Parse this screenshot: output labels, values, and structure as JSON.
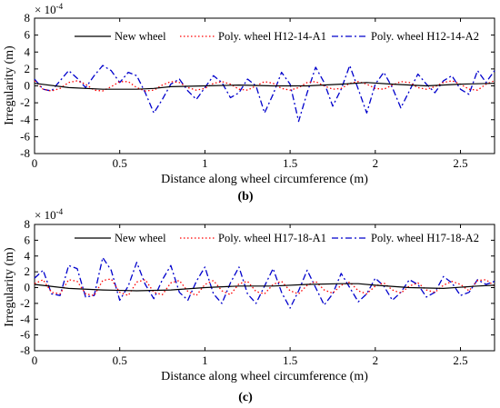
{
  "chart_data": [
    {
      "type": "line",
      "caption": "(b)",
      "multiplier_base": "× 10",
      "multiplier_exp": "-4",
      "xlabel": "Distance along wheel circumference (m)",
      "ylabel": "Irregularity (m)",
      "xlim": [
        0,
        2.7
      ],
      "ylim": [
        -8,
        8
      ],
      "xticks": [
        0,
        0.5,
        1,
        1.5,
        2,
        2.5
      ],
      "xtick_labels": [
        "0",
        "0.5",
        "1",
        "1.5",
        "2",
        "2.5"
      ],
      "yticks": [
        -8,
        -6,
        -4,
        -2,
        0,
        2,
        4,
        6,
        8
      ],
      "ytick_labels": [
        "-8",
        "-6",
        "-4",
        "-2",
        "0",
        "2",
        "4",
        "6",
        "8"
      ],
      "legend_position": "top",
      "series": [
        {
          "name": "New wheel",
          "color": "#000000",
          "style": "solid",
          "x": [
            0,
            0.2,
            0.4,
            0.6,
            0.7,
            0.8,
            1.0,
            1.2,
            1.4,
            1.6,
            1.8,
            1.95,
            2.1,
            2.3,
            2.5,
            2.7
          ],
          "y": [
            0.3,
            -0.2,
            -0.4,
            -0.4,
            -0.3,
            -0.1,
            0.0,
            0.1,
            0.0,
            0.0,
            0.2,
            0.4,
            0.2,
            0.0,
            0.2,
            0.3
          ]
        },
        {
          "name": "Poly. wheel H12-14-A1",
          "color": "#ff0000",
          "style": "dotted",
          "x": [
            0,
            0.05,
            0.1,
            0.15,
            0.2,
            0.25,
            0.3,
            0.35,
            0.4,
            0.45,
            0.5,
            0.55,
            0.6,
            0.65,
            0.7,
            0.75,
            0.8,
            0.85,
            0.9,
            0.95,
            1.0,
            1.05,
            1.1,
            1.15,
            1.2,
            1.25,
            1.3,
            1.35,
            1.4,
            1.45,
            1.5,
            1.55,
            1.6,
            1.65,
            1.7,
            1.75,
            1.8,
            1.85,
            1.9,
            1.95,
            2.0,
            2.05,
            2.1,
            2.15,
            2.2,
            2.25,
            2.3,
            2.35,
            2.4,
            2.45,
            2.5,
            2.55,
            2.6,
            2.65,
            2.7
          ],
          "y": [
            0.6,
            -0.4,
            -0.6,
            -0.3,
            0.4,
            0.6,
            0.2,
            -0.5,
            -0.6,
            -0.1,
            0.5,
            0.5,
            -0.2,
            -0.6,
            -0.5,
            0.1,
            0.5,
            0.4,
            -0.2,
            -0.5,
            -0.3,
            0.3,
            0.5,
            0.2,
            -0.4,
            -0.5,
            0.0,
            0.5,
            0.3,
            -0.3,
            -0.5,
            -0.2,
            0.4,
            0.5,
            0.0,
            -0.4,
            -0.3,
            0.3,
            0.5,
            0.2,
            -0.3,
            -0.4,
            0.1,
            0.5,
            0.4,
            -0.2,
            -0.4,
            -0.1,
            0.4,
            0.6,
            0.2,
            -0.4,
            -0.5,
            0.2,
            0.6
          ]
        },
        {
          "name": "Poly. wheel H12-14-A2",
          "color": "#0000cc",
          "style": "dashdot",
          "x": [
            0,
            0.05,
            0.1,
            0.15,
            0.2,
            0.25,
            0.3,
            0.35,
            0.4,
            0.45,
            0.5,
            0.55,
            0.6,
            0.65,
            0.7,
            0.75,
            0.8,
            0.85,
            0.9,
            0.95,
            1.0,
            1.05,
            1.1,
            1.15,
            1.2,
            1.25,
            1.3,
            1.35,
            1.4,
            1.45,
            1.5,
            1.55,
            1.6,
            1.65,
            1.7,
            1.75,
            1.8,
            1.85,
            1.9,
            1.95,
            2.0,
            2.05,
            2.1,
            2.15,
            2.2,
            2.25,
            2.3,
            2.35,
            2.4,
            2.45,
            2.5,
            2.55,
            2.6,
            2.65,
            2.7
          ],
          "y": [
            0.8,
            -0.4,
            -0.6,
            0.6,
            1.8,
            0.9,
            -0.2,
            1.2,
            2.4,
            1.8,
            0.4,
            1.6,
            1.2,
            -0.8,
            -3.2,
            -1.6,
            0.2,
            0.8,
            -0.6,
            -1.6,
            -0.2,
            1.2,
            0.4,
            -1.4,
            -0.8,
            0.8,
            0.0,
            -3.2,
            -1.0,
            1.6,
            0.2,
            -4.2,
            -0.8,
            2.2,
            0.4,
            -2.4,
            -0.4,
            2.4,
            -0.4,
            -3.2,
            0.2,
            1.6,
            -0.2,
            -2.6,
            -0.6,
            1.4,
            0.2,
            -0.8,
            0.6,
            1.2,
            -0.4,
            -1.0,
            1.8,
            0.4,
            1.8
          ]
        }
      ]
    },
    {
      "type": "line",
      "caption": "(c)",
      "multiplier_base": "× 10",
      "multiplier_exp": "-4",
      "xlabel": "Distance along wheel circumference (m)",
      "ylabel": "Irregularity (m)",
      "xlim": [
        0,
        2.7
      ],
      "ylim": [
        -8,
        8
      ],
      "xticks": [
        0,
        0.5,
        1,
        1.5,
        2,
        2.5
      ],
      "xtick_labels": [
        "0",
        "0.5",
        "1",
        "1.5",
        "2",
        "2.5"
      ],
      "yticks": [
        -8,
        -6,
        -4,
        -2,
        0,
        2,
        4,
        6,
        8
      ],
      "ytick_labels": [
        "-8",
        "-6",
        "-4",
        "-2",
        "0",
        "2",
        "4",
        "6",
        "8"
      ],
      "legend_position": "top",
      "series": [
        {
          "name": "New wheel",
          "color": "#000000",
          "style": "solid",
          "x": [
            0,
            0.2,
            0.4,
            0.6,
            0.8,
            1.0,
            1.2,
            1.4,
            1.6,
            1.8,
            1.9,
            2.0,
            2.2,
            2.4,
            2.6,
            2.7
          ],
          "y": [
            0.4,
            -0.1,
            -0.3,
            -0.4,
            -0.3,
            0.0,
            0.2,
            0.2,
            0.4,
            0.5,
            0.5,
            0.3,
            0.0,
            -0.1,
            0.2,
            0.3
          ]
        },
        {
          "name": "Poly. wheel H17-18-A1",
          "color": "#ff0000",
          "style": "dotted",
          "x": [
            0,
            0.05,
            0.1,
            0.15,
            0.2,
            0.25,
            0.3,
            0.35,
            0.4,
            0.45,
            0.5,
            0.55,
            0.6,
            0.65,
            0.7,
            0.75,
            0.8,
            0.85,
            0.9,
            0.95,
            1.0,
            1.05,
            1.1,
            1.15,
            1.2,
            1.25,
            1.3,
            1.35,
            1.4,
            1.45,
            1.5,
            1.55,
            1.6,
            1.65,
            1.7,
            1.75,
            1.8,
            1.85,
            1.9,
            1.95,
            2.0,
            2.05,
            2.1,
            2.15,
            2.2,
            2.25,
            2.3,
            2.35,
            2.4,
            2.45,
            2.5,
            2.55,
            2.6,
            2.65,
            2.7
          ],
          "y": [
            0.5,
            1.0,
            -0.6,
            -0.8,
            1.0,
            0.8,
            -0.8,
            -1.0,
            0.9,
            1.1,
            -0.6,
            -1.0,
            0.7,
            1.0,
            -0.6,
            -0.9,
            0.6,
            0.9,
            -0.5,
            -1.0,
            0.4,
            0.9,
            -0.4,
            -0.9,
            0.5,
            0.8,
            -0.5,
            -0.8,
            0.4,
            0.8,
            -0.4,
            -0.8,
            0.3,
            0.8,
            -0.3,
            -0.7,
            0.3,
            0.7,
            -0.4,
            -0.8,
            0.2,
            0.6,
            -0.3,
            -0.7,
            0.2,
            0.6,
            -0.3,
            -0.6,
            0.3,
            0.8,
            0.4,
            -0.4,
            0.9,
            1.0,
            0.2
          ]
        },
        {
          "name": "Poly. wheel H17-18-A2",
          "color": "#0000cc",
          "style": "dashdot",
          "x": [
            0,
            0.05,
            0.1,
            0.15,
            0.2,
            0.25,
            0.3,
            0.35,
            0.4,
            0.45,
            0.5,
            0.55,
            0.6,
            0.65,
            0.7,
            0.75,
            0.8,
            0.85,
            0.9,
            0.95,
            1.0,
            1.05,
            1.1,
            1.15,
            1.2,
            1.25,
            1.3,
            1.35,
            1.4,
            1.45,
            1.5,
            1.55,
            1.6,
            1.65,
            1.7,
            1.75,
            1.8,
            1.85,
            1.9,
            1.95,
            2.0,
            2.05,
            2.1,
            2.15,
            2.2,
            2.25,
            2.3,
            2.35,
            2.4,
            2.45,
            2.5,
            2.55,
            2.6,
            2.65,
            2.7
          ],
          "y": [
            1.2,
            2.2,
            -0.8,
            -1.0,
            2.8,
            2.4,
            -1.2,
            -1.0,
            3.8,
            2.2,
            -1.6,
            0.2,
            3.2,
            0.4,
            -1.4,
            1.0,
            2.8,
            -0.6,
            -1.6,
            0.8,
            2.6,
            -0.8,
            -2.0,
            0.6,
            2.6,
            -0.8,
            -2.0,
            0.2,
            2.4,
            -0.6,
            -2.6,
            -0.4,
            2.2,
            0.0,
            -2.2,
            -0.8,
            1.8,
            0.0,
            -1.8,
            -0.8,
            1.2,
            0.2,
            -1.6,
            -0.6,
            1.0,
            0.4,
            -1.2,
            -0.6,
            1.4,
            0.6,
            -1.0,
            -0.6,
            1.0,
            0.4,
            0.8
          ]
        }
      ]
    }
  ]
}
